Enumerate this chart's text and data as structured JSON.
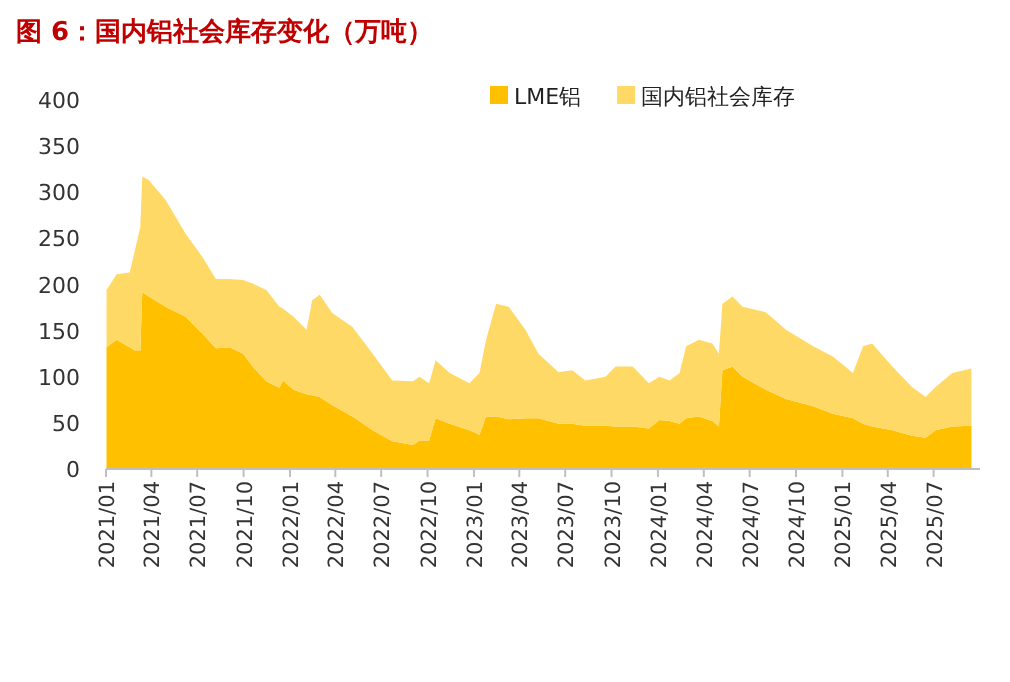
{
  "chart_data": {
    "type": "area",
    "title": "图 6：国内铝社会库存变化（万吨）",
    "stacked": true,
    "legend": "top",
    "x": [
      "2021-01-02",
      "2021-01-22",
      "2021-02-17",
      "2021-03-01",
      "2021-03-10",
      "2021-03-14",
      "2021-03-27",
      "2021-04-29",
      "2021-06-08",
      "2021-07-11",
      "2021-08-07",
      "2021-09-03",
      "2021-09-30",
      "2021-10-19",
      "2021-11-15",
      "2021-12-11",
      "2021-12-18",
      "2022-01-08",
      "2022-02-03",
      "2022-02-14",
      "2022-03-01",
      "2022-03-26",
      "2022-05-05",
      "2022-06-14",
      "2022-07-23",
      "2022-09-02",
      "2022-09-15",
      "2022-10-04",
      "2022-10-17",
      "2022-11-14",
      "2022-12-23",
      "2023-01-12",
      "2023-01-25",
      "2023-02-14",
      "2023-03-11",
      "2023-04-13",
      "2023-05-09",
      "2023-06-18",
      "2023-07-15",
      "2023-08-10",
      "2023-09-19",
      "2023-10-09",
      "2023-11-12",
      "2023-12-14",
      "2024-01-04",
      "2024-01-24",
      "2024-02-13",
      "2024-02-26",
      "2024-03-22",
      "2024-04-18",
      "2024-05-01",
      "2024-05-08",
      "2024-05-28",
      "2024-06-17",
      "2024-08-02",
      "2024-09-11",
      "2024-11-04",
      "2024-12-13",
      "2025-01-22",
      "2025-02-11",
      "2025-03-01",
      "2025-04-10",
      "2025-05-19",
      "2025-06-15",
      "2025-07-05",
      "2025-08-07",
      "2025-09-14"
    ],
    "series": [
      {
        "name": "LME铝",
        "color": "#ffc000",
        "values": [
          132,
          140,
          132,
          128,
          128,
          192,
          187,
          176,
          165,
          147,
          131,
          132,
          125,
          111,
          95,
          88,
          96,
          86,
          81,
          80,
          78,
          69,
          57,
          42,
          30,
          26,
          31,
          31,
          55,
          49,
          42,
          37,
          57,
          57,
          54,
          55,
          55,
          49,
          49,
          47,
          47,
          46,
          46,
          44,
          53,
          52,
          49,
          55,
          57,
          52,
          46,
          107,
          111,
          100,
          86,
          76,
          68,
          60,
          55,
          49,
          46,
          42,
          36,
          34,
          42,
          46,
          47
        ]
      },
      {
        "name": "国内铝社会库存",
        "color": "#ffd966",
        "values": [
          62,
          71,
          81,
          113,
          134,
          125,
          126,
          116,
          90,
          83,
          75,
          74,
          80,
          90,
          99,
          88,
          78,
          79,
          70,
          103,
          111,
          100,
          97,
          83,
          66,
          69,
          69,
          62,
          63,
          55,
          51,
          67,
          83,
          122,
          122,
          96,
          70,
          56,
          58,
          49,
          53,
          65,
          65,
          49,
          47,
          44,
          55,
          78,
          83,
          84,
          79,
          72,
          76,
          76,
          84,
          75,
          65,
          62,
          49,
          84,
          90,
          69,
          53,
          44,
          47,
          58,
          62
        ]
      }
    ],
    "xlim": [
      "2021-01-01",
      "2025-10-01"
    ],
    "xticks": [
      {
        "value": "2021-01",
        "label": "2021/01"
      },
      {
        "value": "2021-04",
        "label": "2021/04"
      },
      {
        "value": "2021-07",
        "label": "2021/07"
      },
      {
        "value": "2021-10",
        "label": "2021/10"
      },
      {
        "value": "2022-01",
        "label": "2022/01"
      },
      {
        "value": "2022-04",
        "label": "2022/04"
      },
      {
        "value": "2022-07",
        "label": "2022/07"
      },
      {
        "value": "2022-10",
        "label": "2022/10"
      },
      {
        "value": "2023-01",
        "label": "2023/01"
      },
      {
        "value": "2023-04",
        "label": "2023/04"
      },
      {
        "value": "2023-07",
        "label": "2023/07"
      },
      {
        "value": "2023-10",
        "label": "2023/10"
      },
      {
        "value": "2024-01",
        "label": "2024/01"
      },
      {
        "value": "2024-04",
        "label": "2024/04"
      },
      {
        "value": "2024-07",
        "label": "2024/07"
      },
      {
        "value": "2024-10",
        "label": "2024/10"
      },
      {
        "value": "2025-01",
        "label": "2025/01"
      },
      {
        "value": "2025-04",
        "label": "2025/04"
      },
      {
        "value": "2025-07",
        "label": "2025/07"
      }
    ],
    "ylim": [
      0,
      400
    ],
    "yticks": [
      0,
      50,
      100,
      150,
      200,
      250,
      300,
      350,
      400
    ]
  }
}
